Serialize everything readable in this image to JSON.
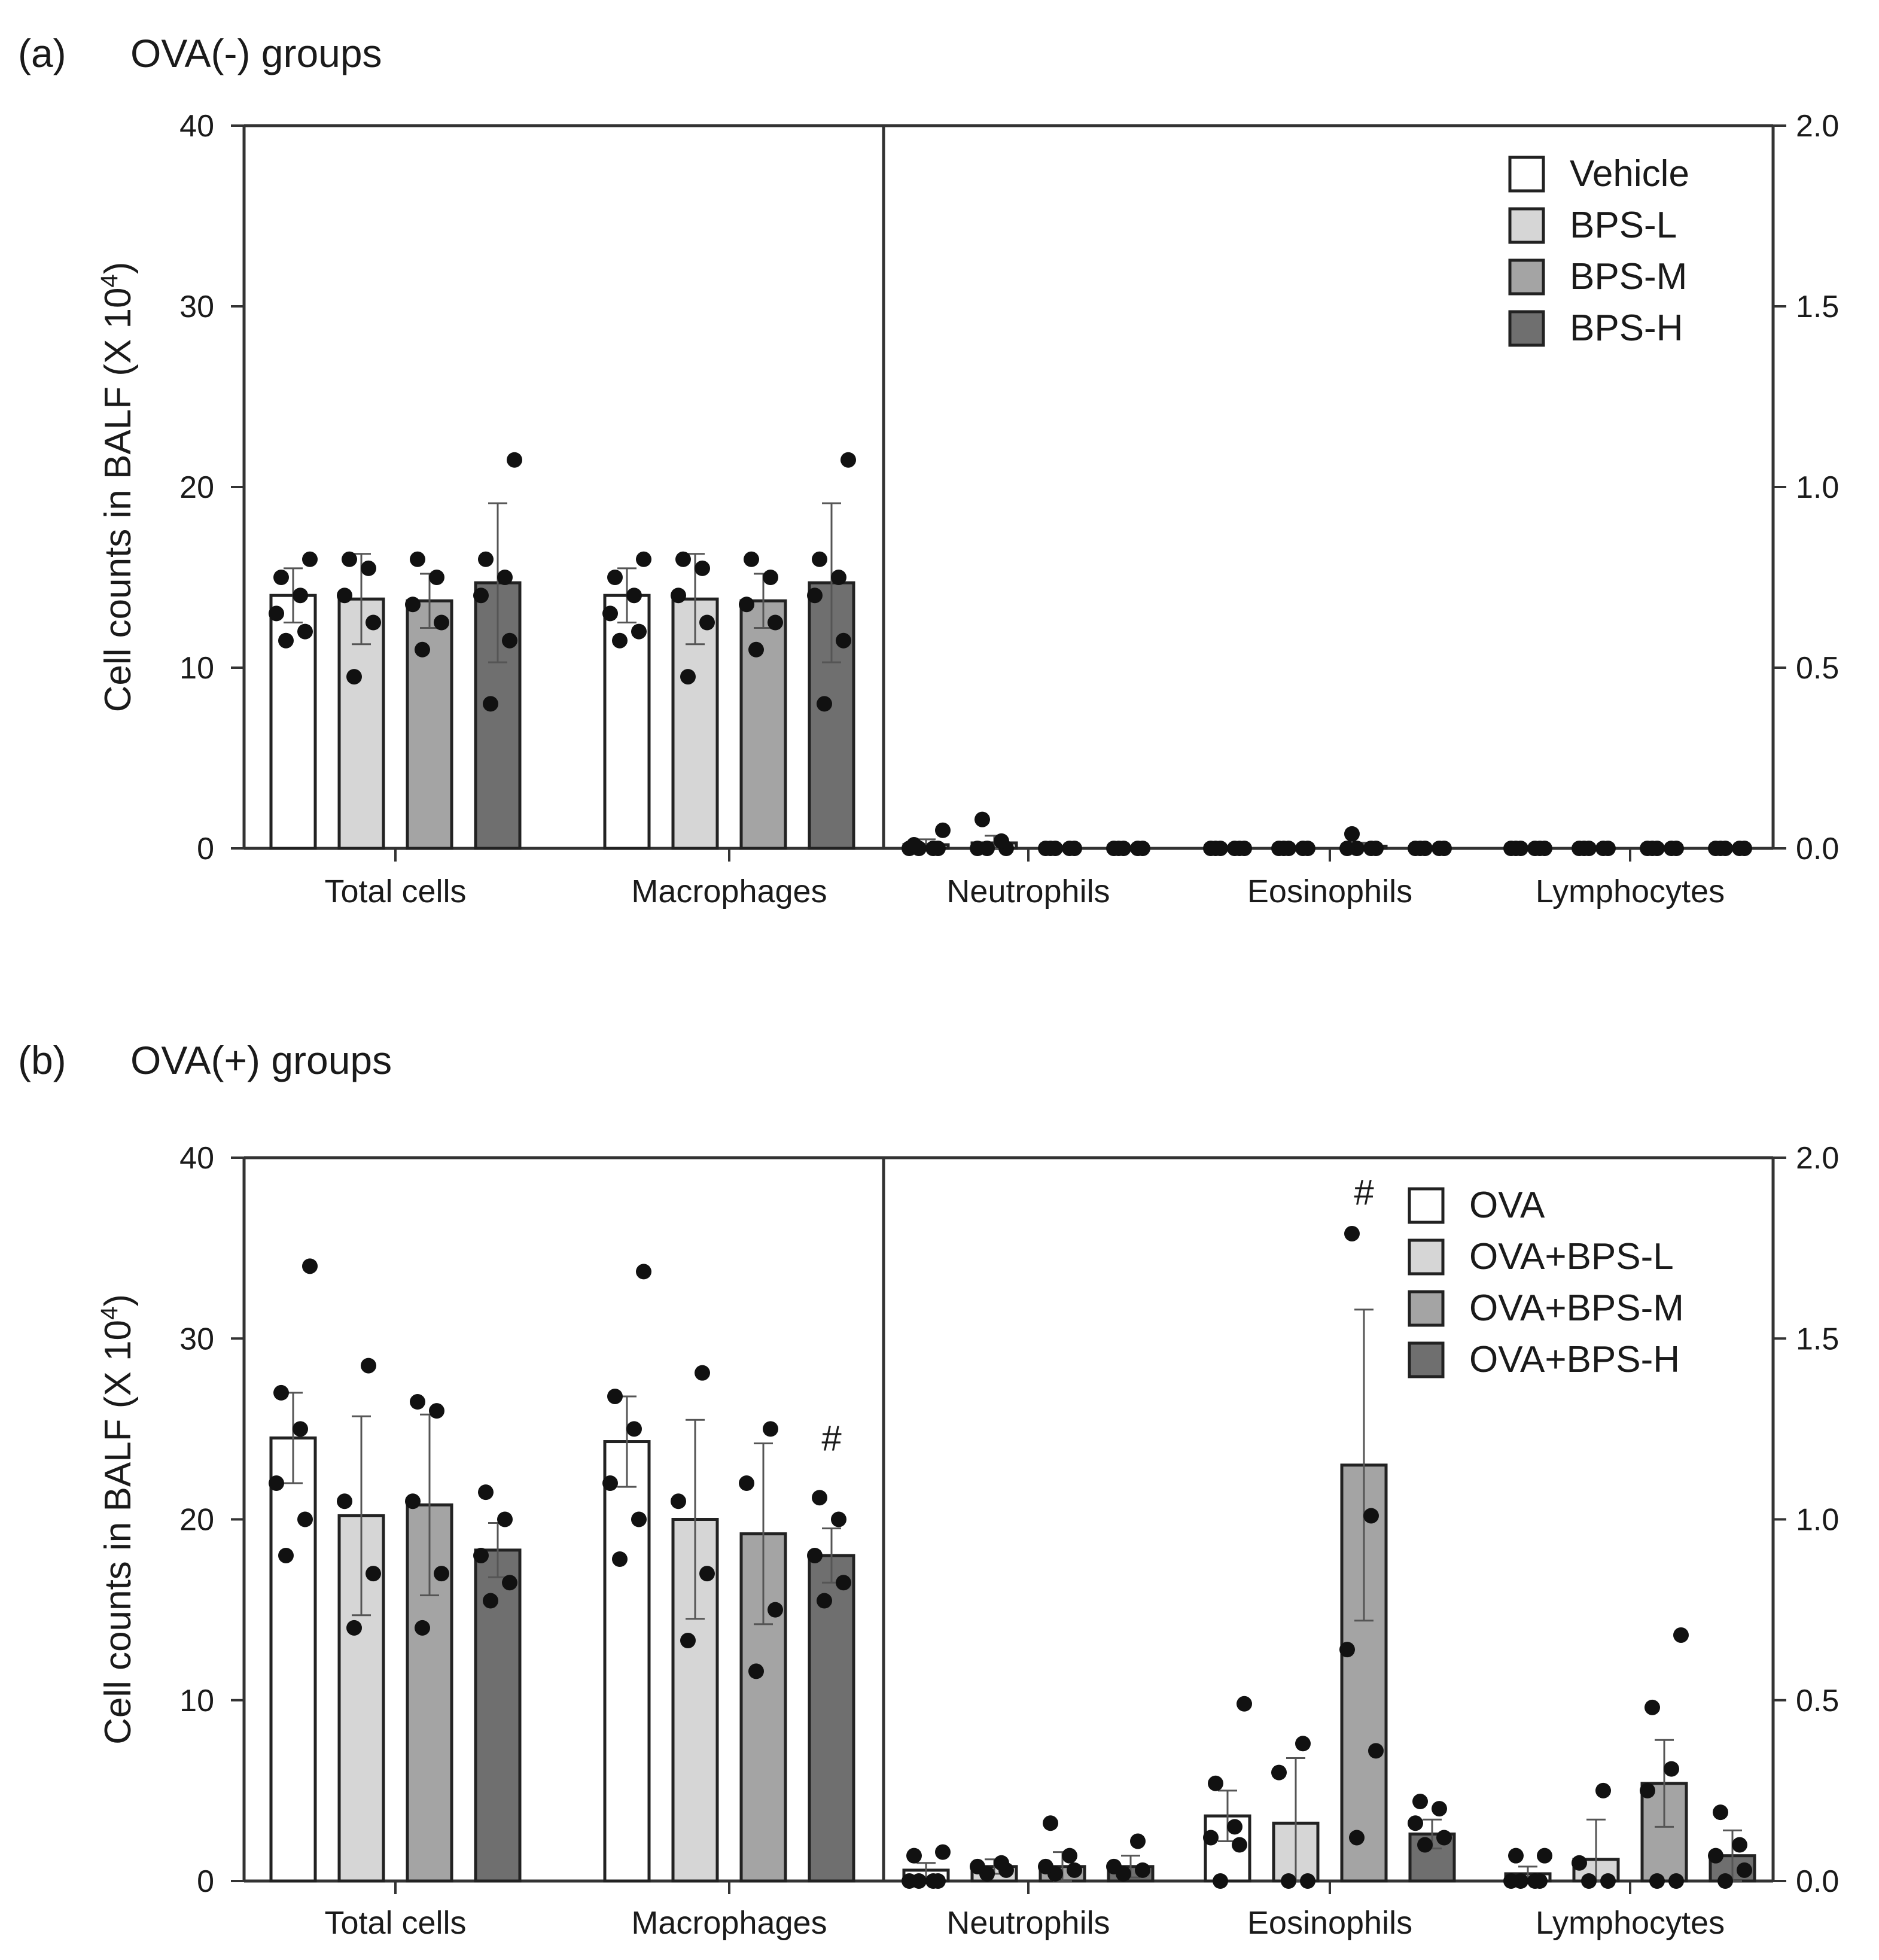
{
  "figure": {
    "panels": [
      {
        "id": "a",
        "panel_label": "(a)",
        "title": "OVA(-) groups",
        "colors": [
          "#ffffff",
          "#d6d6d6",
          "#a4a4a4",
          "#6f6f6f"
        ],
        "chart_data": {
          "type": "bar",
          "title": "OVA(-) groups",
          "ylabel": "Cell counts in BALF (X 10",
          "ylabel_sup": "4",
          "ylabel_close": ")",
          "ylim_left": [
            0,
            40
          ],
          "ylim_right": [
            0,
            2.0
          ],
          "left_ticks": [
            "0",
            "10",
            "20",
            "30",
            "40"
          ],
          "right_ticks": [
            "0.0",
            "0.5",
            "1.0",
            "1.5",
            "2.0"
          ],
          "categories": [
            "Total cells",
            "Macrophages",
            "Neutrophils",
            "Eosinophils",
            "Lymphocytes"
          ],
          "category_axis": [
            "left",
            "left",
            "right",
            "right",
            "right"
          ],
          "legend_position": "top-right",
          "series": [
            {
              "name": "Vehicle",
              "values": [
                14.0,
                14.0,
                0.01,
                0.0,
                0.0
              ],
              "errors": [
                1.5,
                1.5,
                0.015,
                0.0,
                0.0
              ],
              "points": [
                [
                  11.5,
                  12.0,
                  13.0,
                  14.0,
                  15.0,
                  16.0
                ],
                [
                  11.5,
                  12.0,
                  13.0,
                  14.0,
                  15.0,
                  16.0
                ],
                [
                  0.0,
                  0.0,
                  0.0,
                  0.0,
                  0.01,
                  0.05
                ],
                [
                  0,
                  0,
                  0,
                  0,
                  0,
                  0
                ],
                [
                  0,
                  0,
                  0,
                  0,
                  0,
                  0
                ]
              ]
            },
            {
              "name": "BPS-L",
              "values": [
                13.8,
                13.8,
                0.015,
                0.0,
                0.0
              ],
              "errors": [
                2.5,
                2.5,
                0.02,
                0.0,
                0.0
              ],
              "points": [
                [
                  9.5,
                  12.5,
                  14.0,
                  15.5,
                  16.0
                ],
                [
                  9.5,
                  12.5,
                  14.0,
                  15.5,
                  16.0
                ],
                [
                  0.0,
                  0.0,
                  0.0,
                  0.02,
                  0.08
                ],
                [
                  0,
                  0,
                  0,
                  0,
                  0
                ],
                [
                  0,
                  0,
                  0,
                  0,
                  0
                ]
              ]
            },
            {
              "name": "BPS-M",
              "values": [
                13.7,
                13.7,
                0.0,
                0.006,
                0.0
              ],
              "errors": [
                1.5,
                1.5,
                0.0,
                0.01,
                0.0
              ],
              "points": [
                [
                  11.0,
                  12.5,
                  13.5,
                  15.0,
                  16.0
                ],
                [
                  11.0,
                  12.5,
                  13.5,
                  15.0,
                  16.0
                ],
                [
                  0,
                  0,
                  0,
                  0,
                  0
                ],
                [
                  0.0,
                  0.0,
                  0.0,
                  0.0,
                  0.04
                ],
                [
                  0,
                  0,
                  0,
                  0,
                  0
                ]
              ]
            },
            {
              "name": "BPS-H",
              "values": [
                14.7,
                14.7,
                0.0,
                0.0,
                0.0
              ],
              "errors": [
                4.4,
                4.4,
                0.0,
                0.0,
                0.0
              ],
              "points": [
                [
                  8.0,
                  11.5,
                  14.0,
                  15.0,
                  16.0,
                  21.5
                ],
                [
                  8.0,
                  11.5,
                  14.0,
                  15.0,
                  16.0,
                  21.5
                ],
                [
                  0,
                  0,
                  0,
                  0,
                  0
                ],
                [
                  0,
                  0,
                  0,
                  0,
                  0
                ],
                [
                  0,
                  0,
                  0,
                  0,
                  0
                ]
              ]
            }
          ],
          "annotations": []
        }
      },
      {
        "id": "b",
        "panel_label": "(b)",
        "title": "OVA(+) groups",
        "colors": [
          "#ffffff",
          "#d6d6d6",
          "#a4a4a4",
          "#6f6f6f"
        ],
        "chart_data": {
          "type": "bar",
          "title": "OVA(+) groups",
          "ylabel": "Cell counts in BALF (X 10",
          "ylabel_sup": "4",
          "ylabel_close": ")",
          "ylim_left": [
            0,
            40
          ],
          "ylim_right": [
            0,
            2.0
          ],
          "left_ticks": [
            "0",
            "10",
            "20",
            "30",
            "40"
          ],
          "right_ticks": [
            "0.0",
            "0.5",
            "1.0",
            "1.5",
            "2.0"
          ],
          "categories": [
            "Total cells",
            "Macrophages",
            "Neutrophils",
            "Eosinophils",
            "Lymphocytes"
          ],
          "category_axis": [
            "left",
            "left",
            "right",
            "right",
            "right"
          ],
          "legend_position": "top-right",
          "series": [
            {
              "name": "OVA",
              "values": [
                24.5,
                24.3,
                0.03,
                0.18,
                0.02
              ],
              "errors": [
                2.5,
                2.5,
                0.02,
                0.07,
                0.02
              ],
              "points": [
                [
                  18.0,
                  20.0,
                  22.0,
                  25.0,
                  27.0,
                  34.0
                ],
                [
                  17.8,
                  20.0,
                  22.0,
                  25.0,
                  26.8,
                  33.7
                ],
                [
                  0.0,
                  0.0,
                  0.0,
                  0.0,
                  0.07,
                  0.08
                ],
                [
                  0.0,
                  0.1,
                  0.12,
                  0.15,
                  0.27,
                  0.49
                ],
                [
                  0.0,
                  0.0,
                  0.0,
                  0.0,
                  0.07,
                  0.07
                ]
              ]
            },
            {
              "name": "OVA+BPS-L",
              "values": [
                20.2,
                20.0,
                0.04,
                0.16,
                0.06
              ],
              "errors": [
                5.5,
                5.5,
                0.02,
                0.18,
                0.11
              ],
              "points": [
                [
                  14.0,
                  17.0,
                  21.0,
                  28.5
                ],
                [
                  13.3,
                  17.0,
                  21.0,
                  28.1
                ],
                [
                  0.02,
                  0.03,
                  0.04,
                  0.05
                ],
                [
                  0.0,
                  0.0,
                  0.3,
                  0.38
                ],
                [
                  0.0,
                  0.0,
                  0.05,
                  0.25
                ]
              ]
            },
            {
              "name": "OVA+BPS-M",
              "values": [
                20.8,
                19.2,
                0.04,
                1.15,
                0.27
              ],
              "errors": [
                5.0,
                5.0,
                0.04,
                0.43,
                0.12
              ],
              "points": [
                [
                  14.0,
                  17.0,
                  21.0,
                  26.0,
                  26.5
                ],
                [
                  11.6,
                  15.0,
                  22.0,
                  25.0
                ],
                [
                  0.02,
                  0.03,
                  0.04,
                  0.07,
                  0.16
                ],
                [
                  0.12,
                  0.36,
                  0.64,
                  1.01,
                  1.79
                ],
                [
                  0.0,
                  0.0,
                  0.25,
                  0.31,
                  0.48,
                  0.68
                ]
              ]
            },
            {
              "name": "OVA+BPS-H",
              "values": [
                18.3,
                18.0,
                0.04,
                0.13,
                0.07
              ],
              "errors": [
                1.5,
                1.5,
                0.03,
                0.04,
                0.07
              ],
              "points": [
                [
                  15.5,
                  16.5,
                  18.0,
                  20.0,
                  21.5
                ],
                [
                  15.5,
                  16.5,
                  18.0,
                  20.0,
                  21.2
                ],
                [
                  0.02,
                  0.03,
                  0.04,
                  0.11
                ],
                [
                  0.1,
                  0.12,
                  0.16,
                  0.2,
                  0.22
                ],
                [
                  0.0,
                  0.03,
                  0.07,
                  0.1,
                  0.19
                ]
              ]
            }
          ],
          "annotations": [
            {
              "text": "#",
              "category": "Macrophages",
              "series": 3,
              "value": 23.8,
              "axis": "left"
            },
            {
              "text": "#",
              "category": "Eosinophils",
              "series": 2,
              "value": 1.87,
              "axis": "right"
            }
          ]
        }
      }
    ]
  }
}
